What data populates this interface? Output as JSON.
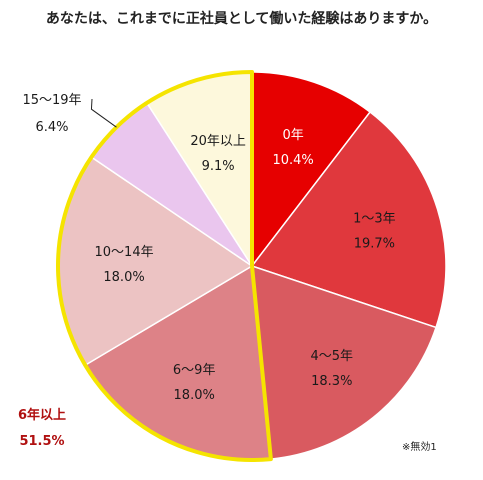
{
  "chart_data": {
    "type": "pie",
    "title": "あなたは、これまでに正社員として働いた経験はありますか。",
    "slices": [
      {
        "label": "0年",
        "value": 10.4,
        "pct": "10.4%",
        "color": "#e60000",
        "text_color": "#ffffff"
      },
      {
        "label": "1～3年",
        "value": 19.7,
        "pct": "19.7%",
        "color": "#e0383d",
        "text_color": "#1a1a1a"
      },
      {
        "label": "4～5年",
        "value": 18.3,
        "pct": "18.3%",
        "color": "#d95a60",
        "text_color": "#1a1a1a"
      },
      {
        "label": "6～9年",
        "value": 18.0,
        "pct": "18.0%",
        "color": "#dd8287",
        "text_color": "#1a1a1a"
      },
      {
        "label": "10～14年",
        "value": 18.0,
        "pct": "18.0%",
        "color": "#ecc3c3",
        "text_color": "#1a1a1a"
      },
      {
        "label": "15～19年",
        "value": 6.4,
        "pct": "6.4%",
        "color": "#eac6ee",
        "text_color": "#1a1a1a"
      },
      {
        "label": "20年以上",
        "value": 9.1,
        "pct": "9.1%",
        "color": "#fdf8dc",
        "text_color": "#1a1a1a"
      }
    ],
    "group_highlight": {
      "label": "6年以上",
      "pct": "51.5%",
      "color": "#b01010",
      "outline_color": "#f5e400"
    },
    "note": "※無効1"
  }
}
